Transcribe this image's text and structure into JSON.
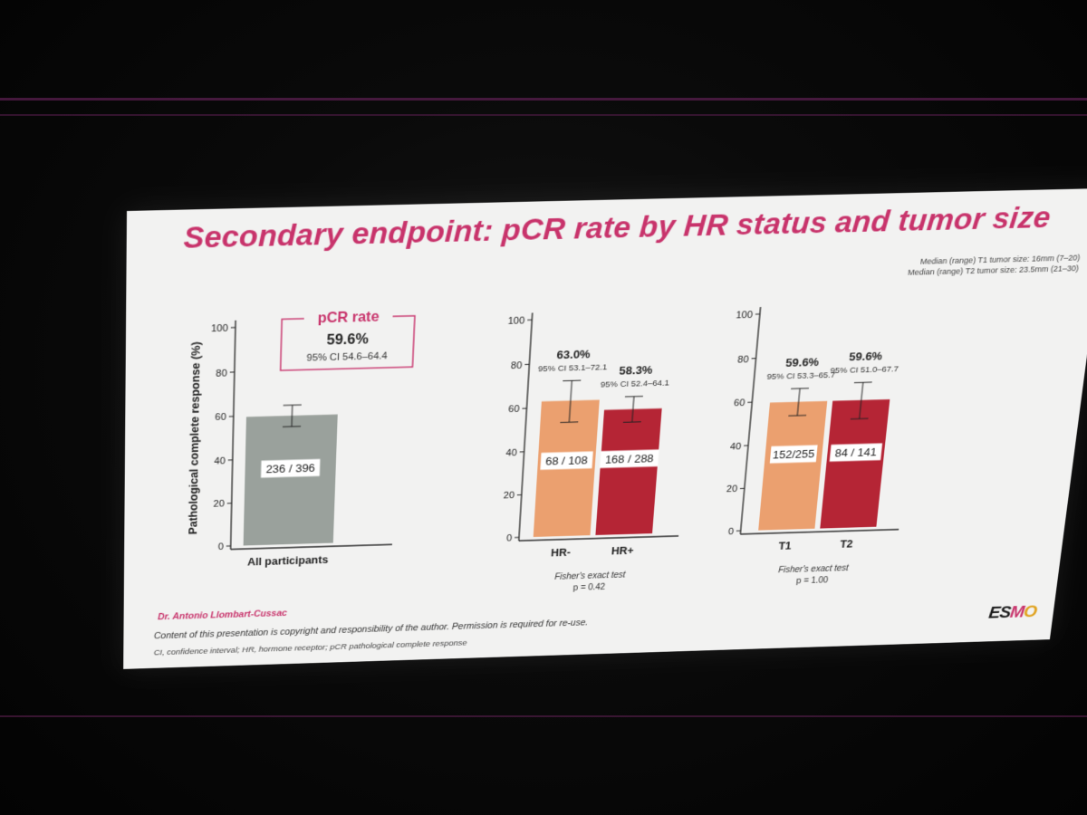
{
  "slide": {
    "title": "Secondary endpoint: pCR rate by HR status and tumor size",
    "note_t1": "Median (range) T1 tumor size: 16mm (7–20)",
    "note_t2": "Median (range) T2 tumor size: 23.5mm (21–30)",
    "author": "Dr. Antonio Llombart-Cussac",
    "copyright": "Content of this presentation is copyright and responsibility of the author. Permission is required for re-use.",
    "abbreviations": "CI, confidence interval; HR, hormone receptor; pCR pathological complete response",
    "logo_text": "ESMO"
  },
  "callout": {
    "label": "pCR rate",
    "value": "59.6%",
    "ci": "95% CI 54.6–64.4"
  },
  "colors": {
    "accent": "#c8336b",
    "gray_bar": "#9aa19c",
    "light_bar": "#eba06f",
    "dark_bar": "#b52535"
  },
  "chart_data": [
    {
      "type": "bar",
      "ylabel": "Pathological complete response (%)",
      "ylim": [
        0,
        100
      ],
      "yticks": [
        0,
        20,
        40,
        60,
        80,
        100
      ],
      "categories": [
        "All participants"
      ],
      "values": [
        59.6
      ],
      "ci": [
        [
          54.6,
          64.4
        ]
      ],
      "bar_labels": [
        "236 / 396"
      ],
      "value_labels": [
        ""
      ],
      "ci_labels": [
        ""
      ],
      "footnote": "",
      "pvalue": "",
      "colors": [
        "#9aa19c"
      ]
    },
    {
      "type": "bar",
      "ylabel": "",
      "ylim": [
        0,
        100
      ],
      "yticks": [
        0,
        20,
        40,
        60,
        80,
        100
      ],
      "categories": [
        "HR-",
        "HR+"
      ],
      "values": [
        63.0,
        58.3
      ],
      "ci": [
        [
          53.1,
          72.1
        ],
        [
          52.4,
          64.1
        ]
      ],
      "bar_labels": [
        "68 / 108",
        "168 / 288"
      ],
      "value_labels": [
        "63.0%",
        "58.3%"
      ],
      "ci_labels": [
        "95% CI 53.1–72.1",
        "95% CI 52.4–64.1"
      ],
      "footnote": "Fisher's exact test",
      "pvalue": "p = 0.42",
      "colors": [
        "#eba06f",
        "#b52535"
      ]
    },
    {
      "type": "bar",
      "ylabel": "",
      "ylim": [
        0,
        100
      ],
      "yticks": [
        0,
        20,
        40,
        60,
        80,
        100
      ],
      "categories": [
        "T1",
        "T2"
      ],
      "values": [
        59.6,
        59.6
      ],
      "ci": [
        [
          53.3,
          65.7
        ],
        [
          51.0,
          67.7
        ]
      ],
      "bar_labels": [
        "152/255",
        "84 / 141"
      ],
      "value_labels": [
        "59.6%",
        "59.6%"
      ],
      "ci_labels": [
        "95% CI 53.3–65.7",
        "95% CI 51.0–67.7"
      ],
      "footnote": "Fisher's exact test",
      "pvalue": "p = 1.00",
      "colors": [
        "#eba06f",
        "#b52535"
      ]
    }
  ]
}
